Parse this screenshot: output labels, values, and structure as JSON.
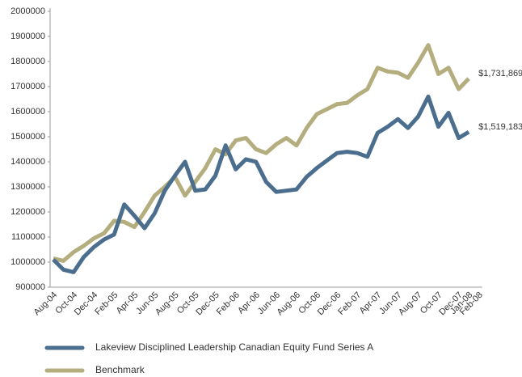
{
  "chart_data": {
    "type": "line",
    "categories": [
      "Aug-04",
      null,
      "Oct-04",
      null,
      "Dec-04",
      null,
      "Feb-05",
      null,
      "Apr-05",
      null,
      "Jun-05",
      null,
      "Aug-05",
      null,
      "Oct-05",
      null,
      "Dec-05",
      null,
      "Feb-06",
      null,
      "Apr-06",
      null,
      "Jun-06",
      null,
      "Aug-06",
      null,
      "Oct-06",
      null,
      "Dec-06",
      null,
      "Feb-07",
      null,
      "Apr-07",
      null,
      "Jun-07",
      null,
      "Aug-07",
      null,
      "Oct-07",
      null,
      "Dec-07",
      "Jan-08",
      "Feb-08"
    ],
    "series": [
      {
        "name": "Lakeview Disciplined Leadership Canadian Equity Fund Series A",
        "color": "#4b6e8e",
        "end_label": "$1,519,183",
        "values": [
          1010000,
          970000,
          960000,
          1020000,
          1060000,
          1090000,
          1110000,
          1230000,
          1185000,
          1135000,
          1195000,
          1285000,
          1345000,
          1400000,
          1285000,
          1290000,
          1345000,
          1465000,
          1370000,
          1410000,
          1400000,
          1320000,
          1280000,
          1285000,
          1290000,
          1340000,
          1375000,
          1405000,
          1435000,
          1440000,
          1435000,
          1420000,
          1515000,
          1540000,
          1570000,
          1535000,
          1580000,
          1660000,
          1540000,
          1595000,
          1495000,
          1519183,
          null
        ]
      },
      {
        "name": "Benchmark",
        "color": "#b4ae7f",
        "end_label": "$1,731,869",
        "values": [
          1015000,
          1005000,
          1040000,
          1065000,
          1095000,
          1115000,
          1165000,
          1160000,
          1140000,
          1200000,
          1265000,
          1300000,
          1340000,
          1265000,
          1320000,
          1375000,
          1450000,
          1430000,
          1485000,
          1495000,
          1450000,
          1435000,
          1470000,
          1495000,
          1465000,
          1535000,
          1590000,
          1610000,
          1630000,
          1635000,
          1665000,
          1690000,
          1775000,
          1760000,
          1755000,
          1735000,
          1795000,
          1865000,
          1750000,
          1775000,
          1690000,
          1731869,
          null
        ]
      }
    ],
    "ylim": [
      900000,
      2000000
    ],
    "yticks": [
      900000,
      1000000,
      1100000,
      1200000,
      1300000,
      1400000,
      1500000,
      1600000,
      1700000,
      1800000,
      1900000,
      2000000
    ],
    "grid": false
  }
}
